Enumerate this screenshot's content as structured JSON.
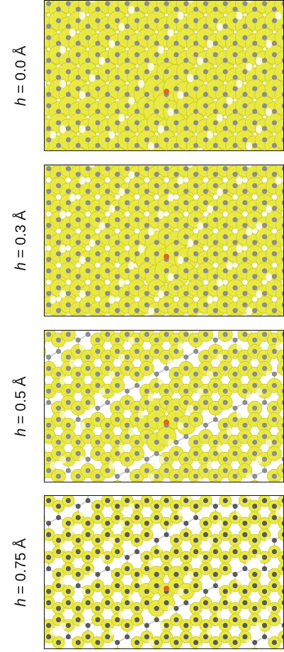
{
  "panels": [
    {
      "label": "h = 0.0 Å",
      "var": "h",
      "rest": " = 0.0 Å",
      "iso_level": 0.0
    },
    {
      "label": "h = 0.3 Å",
      "var": "h",
      "rest": " = 0.3 Å",
      "iso_level": 0.3
    },
    {
      "label": "h = 0.5 Å",
      "var": "h",
      "rest": " = 0.5 Å",
      "iso_level": 0.5
    },
    {
      "label": "h = 0.75 Å",
      "var": "h",
      "rest": " = 0.75 Å",
      "iso_level": 0.75
    }
  ],
  "colors": {
    "isosurface": "#e8e83a",
    "isosurface_edge": "#c9c61c",
    "atom": "#8d8d8d",
    "atom_dark": "#5a5a5a",
    "defect_atom": "#e0661c",
    "bond": "#b9b9b9",
    "frame": "#111111"
  }
}
